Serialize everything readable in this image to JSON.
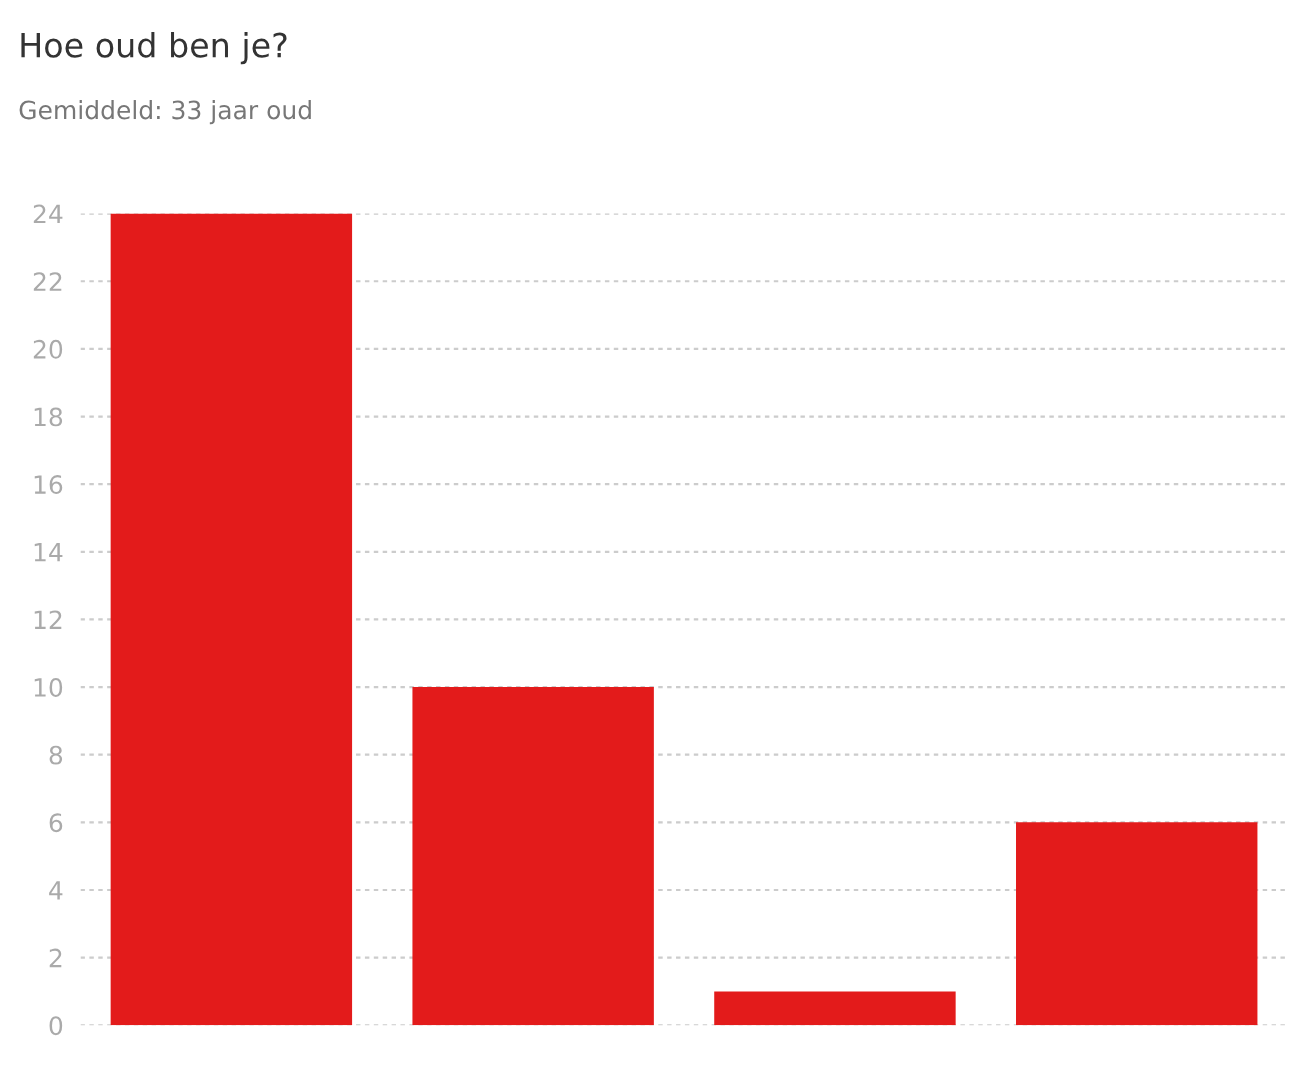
{
  "chart_data": {
    "type": "bar",
    "title": "Hoe oud ben je?",
    "subtitle": "Gemiddeld: 33 jaar oud",
    "categories": [
      null,
      null,
      null,
      null
    ],
    "values": [
      24,
      10,
      1,
      6
    ],
    "color": "#e31b1b",
    "ylim": [
      0,
      24
    ],
    "yticks": [
      0,
      2,
      4,
      6,
      8,
      10,
      12,
      14,
      16,
      18,
      20,
      22,
      24
    ],
    "grid": "y",
    "tick_labels": "y"
  }
}
